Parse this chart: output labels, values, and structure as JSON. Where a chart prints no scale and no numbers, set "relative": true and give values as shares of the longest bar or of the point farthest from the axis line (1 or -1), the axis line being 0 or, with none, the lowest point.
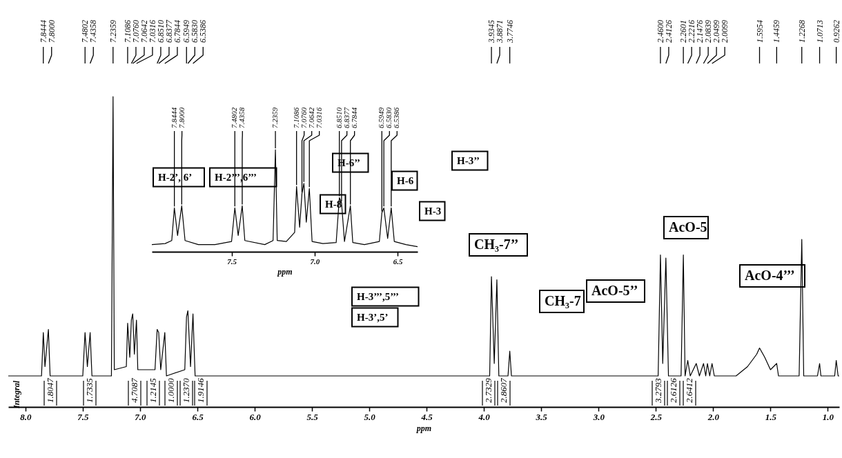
{
  "chart_data": [
    {
      "type": "line",
      "relative": true,
      "xlabel": "ppm",
      "tick_labels": "x",
      "xlim": [
        8.15,
        0.9
      ],
      "xticks": [
        {
          "value": 8.0,
          "label": "8.0"
        },
        {
          "value": 7.5,
          "label": "7.5"
        },
        {
          "value": 7.0,
          "label": "7.0"
        },
        {
          "value": 6.5,
          "label": "6.5"
        },
        {
          "value": 6.0,
          "label": "6.0"
        },
        {
          "value": 5.5,
          "label": "5.5"
        },
        {
          "value": 5.0,
          "label": "5.0"
        },
        {
          "value": 4.5,
          "label": "4.5"
        },
        {
          "value": 4.0,
          "label": "4.0"
        },
        {
          "value": 3.5,
          "label": "3.5"
        },
        {
          "value": 3.0,
          "label": "3.0"
        },
        {
          "value": 2.5,
          "label": "2.5"
        },
        {
          "value": 2.0,
          "label": "2.0"
        },
        {
          "value": 1.5,
          "label": "1.5"
        },
        {
          "value": 1.0,
          "label": "1.0"
        }
      ],
      "series": [
        {
          "color": "#000000",
          "x": [
            8.15,
            7.86,
            7.8444,
            7.83,
            7.8,
            7.785,
            7.5,
            7.4802,
            7.46,
            7.4358,
            7.42,
            7.25,
            7.2359,
            7.225,
            7.12,
            7.1086,
            7.09,
            7.076,
            7.0642,
            7.05,
            7.0316,
            7.02,
            6.87,
            6.851,
            6.8377,
            6.82,
            6.7844,
            6.77,
            6.61,
            6.5949,
            6.583,
            6.56,
            6.5386,
            6.52,
            3.95,
            3.9345,
            3.91,
            3.8871,
            3.87,
            3.79,
            3.7746,
            3.76,
            2.48,
            2.46,
            2.44,
            2.4126,
            2.39,
            2.28,
            2.2601,
            2.245,
            2.2216,
            2.2,
            2.1476,
            2.12,
            2.0839,
            2.065,
            2.0499,
            2.03,
            2.0099,
            1.99,
            1.8,
            1.7,
            1.62,
            1.5954,
            1.55,
            1.5,
            1.4459,
            1.43,
            1.25,
            1.2268,
            1.21,
            1.09,
            1.0713,
            1.06,
            0.94,
            0.9262,
            0.91,
            0.9
          ],
          "values": [
            0.1,
            0.1,
            0.24,
            0.13,
            0.25,
            0.1,
            0.1,
            0.24,
            0.13,
            0.24,
            0.1,
            0.1,
            1.0,
            0.12,
            0.13,
            0.27,
            0.16,
            0.28,
            0.3,
            0.17,
            0.28,
            0.12,
            0.12,
            0.25,
            0.24,
            0.12,
            0.24,
            0.1,
            0.12,
            0.29,
            0.31,
            0.13,
            0.3,
            0.1,
            0.1,
            0.42,
            0.14,
            0.41,
            0.1,
            0.1,
            0.18,
            0.1,
            0.1,
            0.49,
            0.14,
            0.48,
            0.1,
            0.1,
            0.49,
            0.1,
            0.15,
            0.1,
            0.14,
            0.1,
            0.14,
            0.1,
            0.14,
            0.1,
            0.14,
            0.1,
            0.1,
            0.13,
            0.17,
            0.19,
            0.16,
            0.12,
            0.14,
            0.1,
            0.1,
            0.54,
            0.1,
            0.1,
            0.14,
            0.1,
            0.1,
            0.15,
            0.1,
            0.1
          ]
        }
      ],
      "annotations": [
        {
          "text": "7.8444",
          "x": 7.8444
        },
        {
          "text": "7.8000",
          "x": 7.8
        },
        {
          "text": "7.4802",
          "x": 7.4802
        },
        {
          "text": "7.4358",
          "x": 7.4358
        },
        {
          "text": "7.2359",
          "x": 7.2359
        },
        {
          "text": "7.1086",
          "x": 7.1086
        },
        {
          "text": "7.0760",
          "x": 7.076
        },
        {
          "text": "7.0642",
          "x": 7.0642
        },
        {
          "text": "7.0316",
          "x": 7.0316
        },
        {
          "text": "6.8510",
          "x": 6.851
        },
        {
          "text": "6.8377",
          "x": 6.8377
        },
        {
          "text": "6.7844",
          "x": 6.7844
        },
        {
          "text": "6.5949",
          "x": 6.5949
        },
        {
          "text": "6.5830",
          "x": 6.583
        },
        {
          "text": "6.5386",
          "x": 6.5386
        },
        {
          "text": "3.9345",
          "x": 3.9345
        },
        {
          "text": "3.8871",
          "x": 3.8871
        },
        {
          "text": "3.7746",
          "x": 3.7746
        },
        {
          "text": "2.4600",
          "x": 2.46
        },
        {
          "text": "2.4126",
          "x": 2.4126
        },
        {
          "text": "2.2601",
          "x": 2.2601
        },
        {
          "text": "2.2216",
          "x": 2.2216
        },
        {
          "text": "2.1476",
          "x": 2.1476
        },
        {
          "text": "2.0839",
          "x": 2.0839
        },
        {
          "text": "2.0499",
          "x": 2.0499
        },
        {
          "text": "2.0099",
          "x": 2.0099
        },
        {
          "text": "1.5954",
          "x": 1.5954
        },
        {
          "text": "1.4459",
          "x": 1.4459
        },
        {
          "text": "1.2268",
          "x": 1.2268
        },
        {
          "text": "1.0713",
          "x": 1.0713
        },
        {
          "text": "0.9262",
          "x": 0.9262
        },
        "1.8047",
        "1.7335",
        "4.7087",
        "1.2145",
        "1.0000",
        "1.2370",
        "1.9146",
        "2.7329",
        "2.8607",
        "3.2793",
        "2.6126",
        "2.6412",
        "Integral",
        "CH₃-7’’",
        "CH₃-7",
        "AcO-5",
        "AcO-5’’",
        "AcO-4’’’"
      ]
    },
    {
      "type": "line",
      "relative": true,
      "xlabel": "ppm",
      "tick_labels": "x",
      "xlim": [
        7.98,
        6.38
      ],
      "xticks": [
        {
          "value": 7.5,
          "label": "7.5"
        },
        {
          "value": 7.0,
          "label": "7.0"
        },
        {
          "value": 6.5,
          "label": "6.5"
        }
      ],
      "series": [
        {
          "color": "#000000",
          "x": [
            7.98,
            7.9,
            7.86,
            7.8444,
            7.825,
            7.8,
            7.78,
            7.7,
            7.6,
            7.5,
            7.4802,
            7.46,
            7.4358,
            7.42,
            7.3,
            7.25,
            7.2359,
            7.225,
            7.17,
            7.12,
            7.1086,
            7.09,
            7.076,
            7.0642,
            7.05,
            7.0316,
            7.015,
            6.95,
            6.87,
            6.851,
            6.8377,
            6.82,
            6.7844,
            6.77,
            6.7,
            6.61,
            6.5949,
            6.583,
            6.56,
            6.5386,
            6.52,
            6.45,
            6.38
          ],
          "values": [
            0.07,
            0.08,
            0.11,
            0.43,
            0.16,
            0.45,
            0.11,
            0.07,
            0.07,
            0.1,
            0.43,
            0.16,
            0.45,
            0.11,
            0.07,
            0.11,
            1.0,
            0.11,
            0.1,
            0.19,
            0.64,
            0.24,
            0.57,
            0.67,
            0.29,
            0.62,
            0.1,
            0.08,
            0.09,
            0.53,
            0.48,
            0.1,
            0.45,
            0.09,
            0.07,
            0.1,
            0.38,
            0.43,
            0.13,
            0.43,
            0.1,
            0.07,
            0.05
          ]
        }
      ],
      "annotations": [
        {
          "text": "7.8444",
          "x": 7.8444,
          "y": 0.43
        },
        {
          "text": "7.8000",
          "x": 7.8,
          "y": 0.45
        },
        {
          "text": "7.4802",
          "x": 7.4802,
          "y": 0.43
        },
        {
          "text": "7.4358",
          "x": 7.4358,
          "y": 0.45
        },
        {
          "text": "7.2359",
          "x": 7.2359,
          "y": 1.0
        },
        {
          "text": "7.1086",
          "x": 7.1086,
          "y": 0.64
        },
        {
          "text": "7.0760",
          "x": 7.076,
          "y": 0.57
        },
        {
          "text": "7.0642",
          "x": 7.0642,
          "y": 0.67
        },
        {
          "text": "7.0316",
          "x": 7.0316,
          "y": 0.62
        },
        {
          "text": "6.8510",
          "x": 6.851,
          "y": 0.53
        },
        {
          "text": "6.8377",
          "x": 6.8377,
          "y": 0.48
        },
        {
          "text": "6.7844",
          "x": 6.7844,
          "y": 0.45
        },
        {
          "text": "6.5949",
          "x": 6.5949,
          "y": 0.38
        },
        {
          "text": "6.5830",
          "x": 6.583,
          "y": 0.43
        },
        {
          "text": "6.5386",
          "x": 6.5386,
          "y": 0.43
        },
        "H-2’, 6’",
        "H-2’’’,6’’’",
        "H-6’’",
        "H-8",
        "H-6",
        "H-3’’",
        "H-3",
        "H-3’’’,5’’’",
        "H-3’,5’"
      ]
    }
  ]
}
